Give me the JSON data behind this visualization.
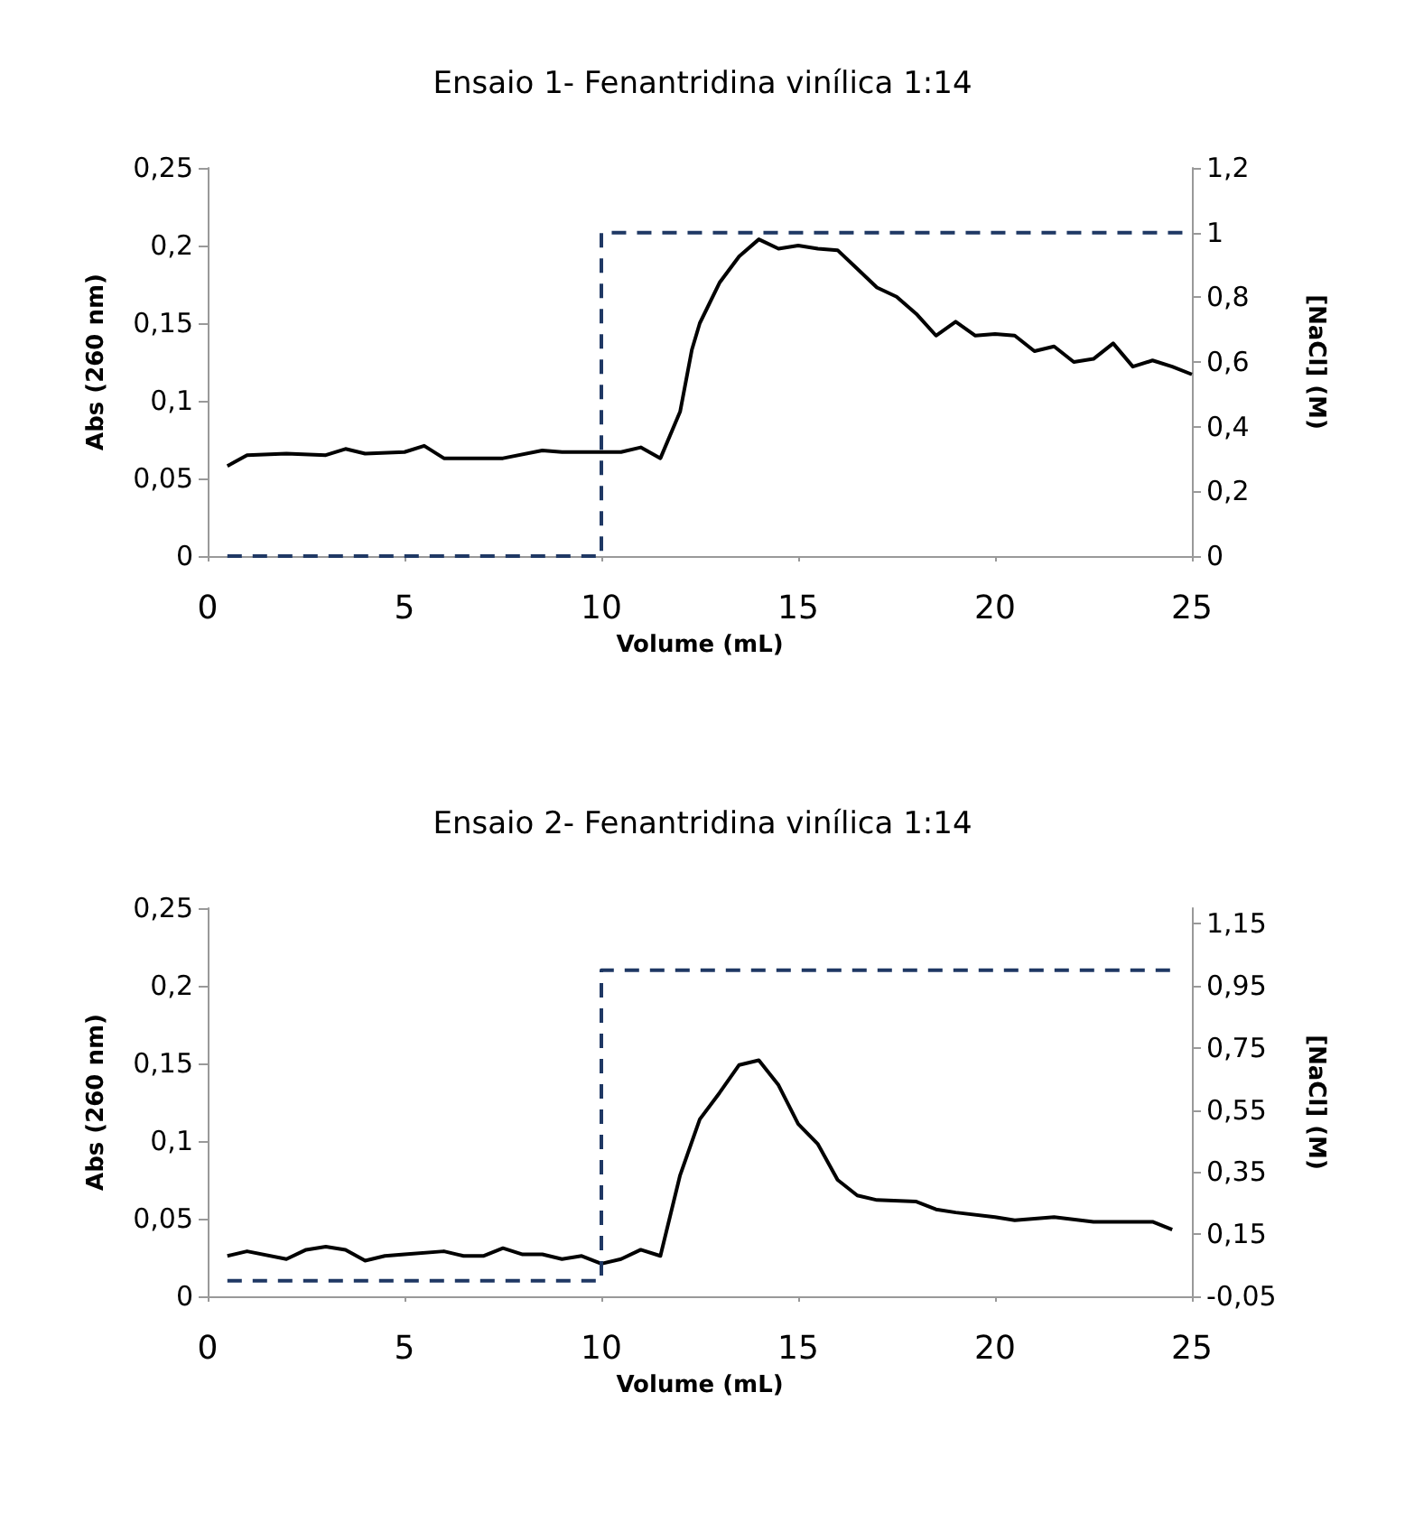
{
  "chart_data": [
    {
      "type": "line",
      "title": "Ensaio 1- Fenantridina vinílica 1:14",
      "xlabel": "Volume (mL)",
      "ylabel": "Abs (260 nm)",
      "y2label": "[NaCl] (M)",
      "xlim": [
        0,
        25
      ],
      "xticks": [
        0,
        5,
        10,
        15,
        20,
        25
      ],
      "ylim": [
        0,
        0.25
      ],
      "yticks": [
        0,
        {
          "value": 0.05,
          "label": "0,05"
        },
        {
          "value": 0.1,
          "label": "0,1"
        },
        {
          "value": 0.15,
          "label": "0,15"
        },
        {
          "value": 0.2,
          "label": "0,2"
        },
        {
          "value": 0.25,
          "label": "0,25"
        }
      ],
      "y2lim": [
        0,
        1.2
      ],
      "y2ticks": [
        0,
        {
          "value": 0.2,
          "label": "0,2"
        },
        {
          "value": 0.4,
          "label": "0,4"
        },
        {
          "value": 0.6,
          "label": "0,6"
        },
        {
          "value": 0.8,
          "label": "0,8"
        },
        1,
        {
          "value": 1.2,
          "label": "1,2"
        }
      ],
      "grid": false,
      "marker": "none",
      "series": [
        {
          "color": "#000000",
          "line_style": "solid",
          "x": [
            0.5,
            1,
            2,
            3,
            3.5,
            4,
            5,
            5.5,
            6,
            7,
            7.5,
            8.5,
            9,
            10,
            10.5,
            11,
            11.5,
            12,
            12.3,
            12.5,
            13,
            13.5,
            14,
            14.5,
            15,
            15.5,
            16,
            16.5,
            17,
            17.5,
            18,
            18.5,
            19,
            19.5,
            20,
            20.5,
            21,
            21.5,
            22,
            22.5,
            23,
            23.5,
            24,
            24.5,
            25
          ],
          "values": [
            0.058,
            0.065,
            0.066,
            0.065,
            0.069,
            0.066,
            0.067,
            0.071,
            0.063,
            0.063,
            0.063,
            0.068,
            0.067,
            0.067,
            0.067,
            0.07,
            0.063,
            0.093,
            0.133,
            0.15,
            0.176,
            0.193,
            0.204,
            0.198,
            0.2,
            0.198,
            0.197,
            0.185,
            0.173,
            0.167,
            0.156,
            0.142,
            0.151,
            0.142,
            0.143,
            0.142,
            0.132,
            0.135,
            0.125,
            0.127,
            0.137,
            0.122,
            0.126,
            0.122,
            0.117
          ]
        },
        {
          "axis": "y2",
          "color": "#1f3864",
          "line_style": "dashed",
          "x": [
            0.5,
            10,
            10,
            25
          ],
          "values": [
            0,
            0,
            1,
            1
          ]
        }
      ]
    },
    {
      "type": "line",
      "title": "Ensaio 2- Fenantridina vinílica 1:14",
      "xlabel": "Volume (mL)",
      "ylabel": "Abs (260 nm)",
      "y2label": "[NaCl] (M)",
      "xlim": [
        0,
        25
      ],
      "xticks": [
        0,
        5,
        10,
        15,
        20,
        25
      ],
      "ylim": [
        0,
        0.25
      ],
      "yticks": [
        0,
        {
          "value": 0.05,
          "label": "0,05"
        },
        {
          "value": 0.1,
          "label": "0,1"
        },
        {
          "value": 0.15,
          "label": "0,15"
        },
        {
          "value": 0.2,
          "label": "0,2"
        },
        {
          "value": 0.25,
          "label": "0,25"
        }
      ],
      "y2lim": [
        -0.05,
        1.2
      ],
      "y2ticks": [
        {
          "value": -0.05,
          "label": "-0,05"
        },
        {
          "value": 0.15,
          "label": "0,15"
        },
        {
          "value": 0.35,
          "label": "0,35"
        },
        {
          "value": 0.55,
          "label": "0,55"
        },
        {
          "value": 0.75,
          "label": "0,75"
        },
        {
          "value": 0.95,
          "label": "0,95"
        },
        {
          "value": 1.15,
          "label": "1,15"
        }
      ],
      "grid": false,
      "marker": "none",
      "series": [
        {
          "color": "#000000",
          "line_style": "solid",
          "x": [
            0.5,
            1,
            2,
            2.5,
            3,
            3.5,
            4,
            4.5,
            5,
            6,
            6.5,
            7,
            7.5,
            8,
            8.5,
            9,
            9.5,
            10,
            10.5,
            11,
            11.5,
            12,
            12.5,
            13,
            13.5,
            14,
            14.5,
            15,
            15.5,
            16,
            16.5,
            17,
            18,
            18.5,
            19,
            20,
            20.5,
            21.5,
            22.5,
            23,
            24,
            24.5
          ],
          "values": [
            0.026,
            0.029,
            0.024,
            0.03,
            0.032,
            0.03,
            0.023,
            0.026,
            0.027,
            0.029,
            0.026,
            0.026,
            0.031,
            0.027,
            0.027,
            0.024,
            0.026,
            0.021,
            0.024,
            0.03,
            0.026,
            0.078,
            0.114,
            0.131,
            0.149,
            0.152,
            0.136,
            0.111,
            0.098,
            0.075,
            0.065,
            0.062,
            0.061,
            0.056,
            0.054,
            0.051,
            0.049,
            0.051,
            0.048,
            0.048,
            0.048,
            0.043
          ]
        },
        {
          "axis": "y2",
          "color": "#1f3864",
          "line_style": "dashed",
          "x": [
            0.5,
            10,
            10,
            24.5
          ],
          "values": [
            0,
            0,
            1,
            1
          ]
        }
      ]
    }
  ]
}
